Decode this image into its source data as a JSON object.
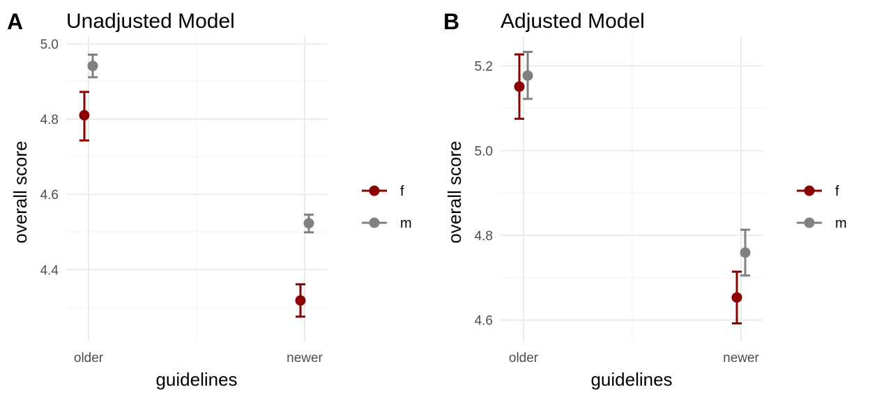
{
  "chart_data": [
    {
      "tag": "A",
      "title": "Unadjusted Model",
      "type": "scatter",
      "xlabel": "guidelines",
      "ylabel": "overall score",
      "categories": [
        "older",
        "newer"
      ],
      "ylim": [
        4.21,
        5.02
      ],
      "yticks": [
        4.4,
        4.6,
        4.8,
        5.0
      ],
      "ytick_labels": [
        "4.4",
        "4.6",
        "4.8",
        "5.0"
      ],
      "series": [
        {
          "name": "f",
          "color": "#8b0000",
          "points": [
            {
              "x": "older",
              "y": 4.81,
              "lo": 4.743,
              "hi": 4.872
            },
            {
              "x": "newer",
              "y": 4.318,
              "lo": 4.275,
              "hi": 4.361
            }
          ]
        },
        {
          "name": "m",
          "color": "#808080",
          "points": [
            {
              "x": "older",
              "y": 4.941,
              "lo": 4.911,
              "hi": 4.971
            },
            {
              "x": "newer",
              "y": 4.523,
              "lo": 4.499,
              "hi": 4.546
            }
          ]
        }
      ],
      "grid": true,
      "legend": "right"
    },
    {
      "tag": "B",
      "title": "Adjusted Model",
      "type": "scatter",
      "xlabel": "guidelines",
      "ylabel": "overall score",
      "categories": [
        "older",
        "newer"
      ],
      "ylim": [
        4.55,
        5.27
      ],
      "yticks": [
        4.6,
        4.8,
        5.0,
        5.2
      ],
      "ytick_labels": [
        "4.6",
        "4.8",
        "5.0",
        "5.2"
      ],
      "series": [
        {
          "name": "f",
          "color": "#8b0000",
          "points": [
            {
              "x": "older",
              "y": 5.151,
              "lo": 5.075,
              "hi": 5.227
            },
            {
              "x": "newer",
              "y": 4.653,
              "lo": 4.592,
              "hi": 4.714
            }
          ]
        },
        {
          "name": "m",
          "color": "#808080",
          "points": [
            {
              "x": "older",
              "y": 5.177,
              "lo": 5.122,
              "hi": 5.233
            },
            {
              "x": "newer",
              "y": 4.759,
              "lo": 4.705,
              "hi": 4.813
            }
          ]
        }
      ],
      "grid": true,
      "legend": "right"
    }
  ]
}
